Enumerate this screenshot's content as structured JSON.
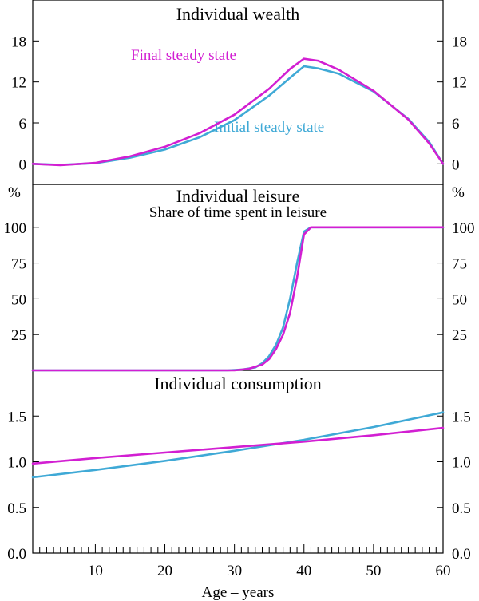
{
  "colors": {
    "initial": "#3fa9d6",
    "final": "#d21fd2",
    "axis": "#000000"
  },
  "chart_data": [
    {
      "type": "line",
      "title": "Individual wealth",
      "unit": "",
      "ylim": [
        -3,
        24
      ],
      "yticks": [
        0,
        6,
        12,
        18
      ],
      "ytick_labels": [
        "0",
        "6",
        "12",
        "18"
      ],
      "series": [
        {
          "name": "Initial steady state",
          "x": [
            1,
            5,
            10,
            15,
            20,
            25,
            30,
            35,
            38,
            40,
            42,
            45,
            50,
            55,
            58,
            60
          ],
          "values": [
            0,
            -0.15,
            0.1,
            0.9,
            2.1,
            3.9,
            6.4,
            10.0,
            12.6,
            14.3,
            14.0,
            13.2,
            10.6,
            6.6,
            3.2,
            0
          ]
        },
        {
          "name": "Final steady state",
          "x": [
            1,
            5,
            10,
            15,
            20,
            25,
            30,
            35,
            38,
            40,
            42,
            45,
            50,
            55,
            58,
            60
          ],
          "values": [
            0,
            -0.2,
            0.15,
            1.1,
            2.5,
            4.5,
            7.2,
            11.0,
            13.9,
            15.4,
            15.1,
            13.8,
            10.7,
            6.5,
            3.0,
            0
          ]
        }
      ]
    },
    {
      "type": "line",
      "title": "Individual leisure",
      "subtitle": "Share of time spent in leisure",
      "unit": "%",
      "ylim": [
        0,
        130
      ],
      "yticks": [
        25,
        50,
        75,
        100
      ],
      "ytick_labels": [
        "25",
        "50",
        "75",
        "100"
      ],
      "series": [
        {
          "name": "Initial steady state",
          "x": [
            1,
            29,
            31,
            33,
            34,
            35,
            36,
            37,
            38,
            39,
            40,
            41,
            60
          ],
          "values": [
            0,
            0,
            0.5,
            2,
            5,
            10,
            18,
            30,
            50,
            75,
            97,
            100,
            100
          ]
        },
        {
          "name": "Final steady state",
          "x": [
            1,
            30,
            32,
            34,
            35,
            36,
            37,
            38,
            39,
            40,
            41,
            42,
            60
          ],
          "values": [
            0,
            0,
            1,
            4,
            8,
            15,
            25,
            40,
            65,
            95,
            100,
            100,
            100
          ]
        }
      ]
    },
    {
      "type": "line",
      "title": "Individual consumption",
      "unit": "",
      "ylim": [
        0,
        2.0
      ],
      "yticks": [
        0.0,
        0.5,
        1.0,
        1.5
      ],
      "ytick_labels": [
        "0.0",
        "0.5",
        "1.0",
        "1.5"
      ],
      "series": [
        {
          "name": "Initial steady state",
          "x": [
            1,
            10,
            20,
            30,
            40,
            50,
            60
          ],
          "values": [
            0.83,
            0.91,
            1.01,
            1.12,
            1.24,
            1.38,
            1.54
          ]
        },
        {
          "name": "Final steady state",
          "x": [
            1,
            10,
            20,
            30,
            40,
            50,
            60
          ],
          "values": [
            0.98,
            1.04,
            1.1,
            1.16,
            1.22,
            1.29,
            1.37
          ]
        }
      ]
    }
  ],
  "x_axis": {
    "xlim": [
      1,
      60
    ],
    "ticks": [
      10,
      20,
      30,
      40,
      50,
      60
    ],
    "tick_labels": [
      "10",
      "20",
      "30",
      "40",
      "50",
      "60"
    ],
    "label": "Age – years"
  },
  "annotations": {
    "final": "Final steady state",
    "initial": "Initial steady state"
  }
}
